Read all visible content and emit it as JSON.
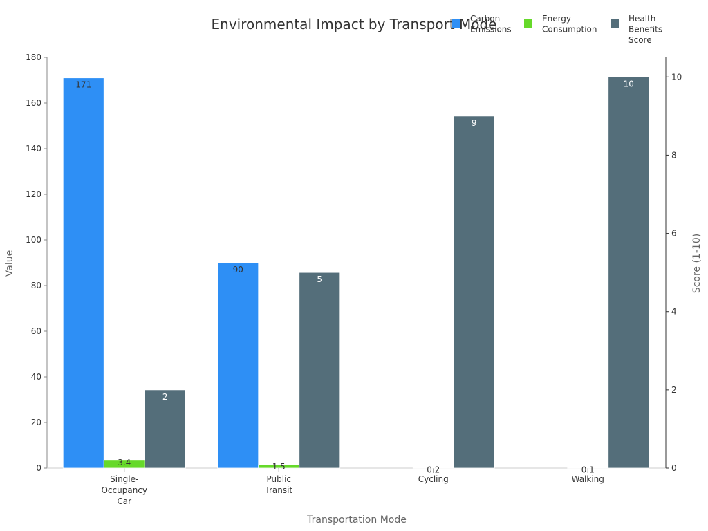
{
  "chart_data": {
    "type": "bar",
    "title": "Environmental Impact by Transport Mode",
    "xlabel": "Transportation Mode",
    "ylabel": "Value",
    "y2label": "Score (1-10)",
    "categories": [
      "Single-Occupancy Car",
      "Public Transit",
      "Cycling",
      "Walking"
    ],
    "category_lines": [
      [
        "Single-",
        "Occupancy",
        "Car"
      ],
      [
        "Public",
        "Transit"
      ],
      [
        "Cycling"
      ],
      [
        "Walking"
      ]
    ],
    "ylim": [
      0,
      180
    ],
    "y_ticks": [
      0,
      20,
      40,
      60,
      80,
      100,
      120,
      140,
      160,
      180
    ],
    "y2lim": [
      0,
      10.5
    ],
    "y2_ticks": [
      0,
      2,
      4,
      6,
      8,
      10
    ],
    "legend_position": "top-right",
    "grid": false,
    "series": [
      {
        "name": "Carbon Emissions",
        "name_lines": [
          "Carbon",
          "Emissions"
        ],
        "axis": "left",
        "color": "#2E8FF5",
        "values": [
          171,
          90,
          0,
          0
        ],
        "labels": [
          "171",
          "90",
          "",
          ""
        ]
      },
      {
        "name": "Energy Consumption",
        "name_lines": [
          "Energy",
          "Consumption"
        ],
        "axis": "left",
        "color": "#66D92A",
        "values": [
          3.4,
          1.5,
          0.2,
          0.1
        ],
        "labels": [
          "3.4",
          "1.5",
          "0.2",
          "0.1"
        ]
      },
      {
        "name": "Health Benefits Score",
        "name_lines": [
          "Health",
          "Benefits",
          "Score"
        ],
        "axis": "right",
        "color": "#546E7A",
        "values": [
          2,
          5,
          9,
          10
        ],
        "labels": [
          "2",
          "5",
          "9",
          "10"
        ]
      }
    ]
  }
}
